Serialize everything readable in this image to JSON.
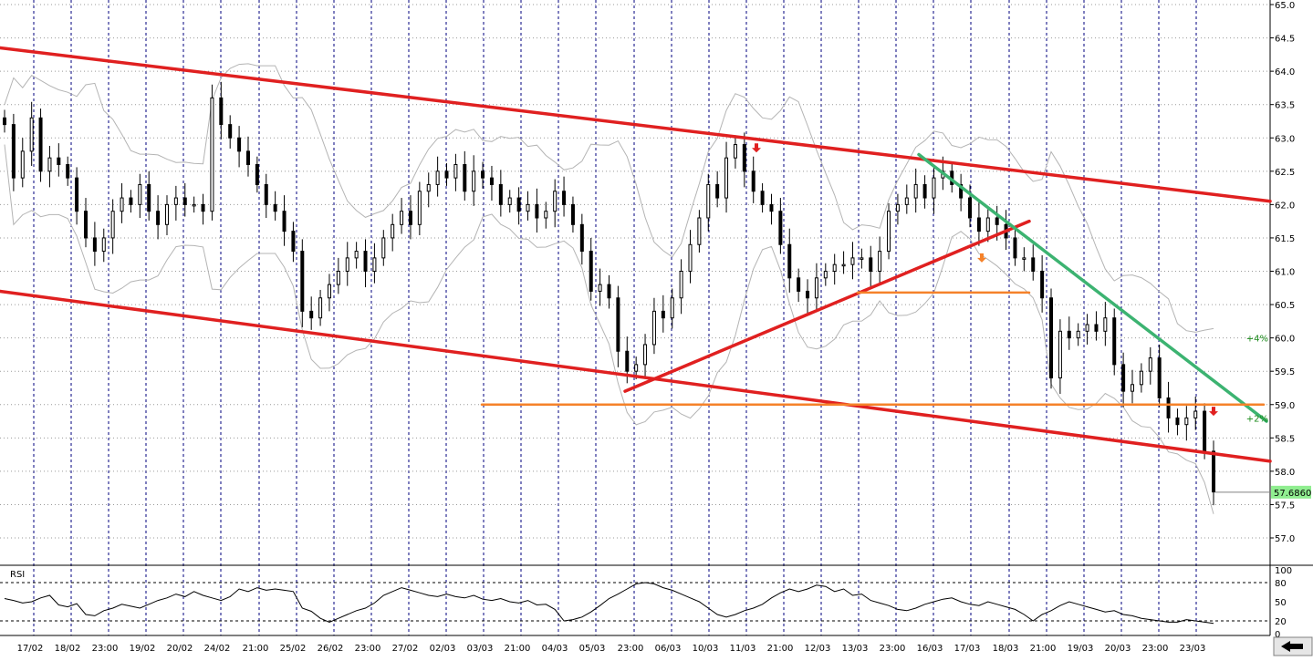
{
  "chart_data": [
    {
      "type": "candlestick",
      "title": "",
      "x_tick_labels": [
        "17/02",
        "18/02",
        "23:00",
        "19/02",
        "20/02",
        "24/02",
        "21:00",
        "25/02",
        "26/02",
        "23:00",
        "27/02",
        "02/03",
        "03/03",
        "21:00",
        "04/03",
        "05/03",
        "23:00",
        "06/03",
        "10/03",
        "11/03",
        "21:00",
        "12/03",
        "13/03",
        "23:00",
        "16/03",
        "17/03",
        "18/03",
        "21:00",
        "19/03",
        "20/03",
        "23:00",
        "23/03"
      ],
      "y_tick_labels": [
        "65.0",
        "64.5",
        "64.0",
        "63.5",
        "63.0",
        "62.5",
        "62.0",
        "61.5",
        "61.0",
        "60.5",
        "60.0",
        "59.5",
        "59.0",
        "58.5",
        "58.0",
        "57.5",
        "57.0"
      ],
      "ylim": [
        56.8,
        65.05
      ],
      "grid": true,
      "last_value_label": "57.6860",
      "last_value": 57.686,
      "close_path": [
        [
          0,
          63.2
        ],
        [
          1,
          62.4
        ],
        [
          2,
          62.8
        ],
        [
          3,
          63.3
        ],
        [
          4,
          62.5
        ],
        [
          5,
          62.7
        ],
        [
          6,
          62.6
        ],
        [
          7,
          62.4
        ],
        [
          8,
          61.9
        ],
        [
          9,
          61.5
        ],
        [
          10,
          61.3
        ],
        [
          11,
          61.5
        ],
        [
          12,
          61.9
        ],
        [
          13,
          62.1
        ],
        [
          14,
          62.0
        ],
        [
          15,
          62.3
        ],
        [
          16,
          61.9
        ],
        [
          17,
          61.7
        ],
        [
          18,
          62.0
        ],
        [
          19,
          62.1
        ],
        [
          20,
          62.0
        ],
        [
          21,
          62.0
        ],
        [
          22,
          61.9
        ],
        [
          23,
          63.6
        ],
        [
          24,
          63.2
        ],
        [
          25,
          63.0
        ],
        [
          26,
          62.8
        ],
        [
          27,
          62.6
        ],
        [
          28,
          62.3
        ],
        [
          29,
          62.0
        ],
        [
          30,
          61.9
        ],
        [
          31,
          61.6
        ],
        [
          32,
          61.3
        ],
        [
          33,
          60.4
        ],
        [
          34,
          60.3
        ],
        [
          35,
          60.6
        ],
        [
          36,
          60.8
        ],
        [
          37,
          61.0
        ],
        [
          38,
          61.2
        ],
        [
          39,
          61.3
        ],
        [
          40,
          61.0
        ],
        [
          41,
          61.2
        ],
        [
          42,
          61.5
        ],
        [
          43,
          61.7
        ],
        [
          44,
          61.9
        ],
        [
          45,
          61.7
        ],
        [
          46,
          62.2
        ],
        [
          47,
          62.3
        ],
        [
          48,
          62.5
        ],
        [
          49,
          62.4
        ],
        [
          50,
          62.6
        ],
        [
          51,
          62.2
        ],
        [
          52,
          62.5
        ],
        [
          53,
          62.4
        ],
        [
          54,
          62.3
        ],
        [
          55,
          62.0
        ],
        [
          56,
          62.1
        ],
        [
          57,
          61.9
        ],
        [
          58,
          62.0
        ],
        [
          59,
          61.8
        ],
        [
          60,
          61.9
        ],
        [
          61,
          62.2
        ],
        [
          62,
          62.0
        ],
        [
          63,
          61.7
        ],
        [
          64,
          61.3
        ],
        [
          65,
          60.7
        ],
        [
          66,
          60.8
        ],
        [
          67,
          60.6
        ],
        [
          68,
          59.8
        ],
        [
          69,
          59.5
        ],
        [
          70,
          59.6
        ],
        [
          71,
          59.9
        ],
        [
          72,
          60.4
        ],
        [
          73,
          60.3
        ],
        [
          74,
          60.6
        ],
        [
          75,
          61.0
        ],
        [
          76,
          61.4
        ],
        [
          77,
          61.8
        ],
        [
          78,
          62.3
        ],
        [
          79,
          62.1
        ],
        [
          80,
          62.7
        ],
        [
          81,
          62.9
        ],
        [
          82,
          62.5
        ],
        [
          83,
          62.2
        ],
        [
          84,
          62.0
        ],
        [
          85,
          61.9
        ],
        [
          86,
          61.4
        ],
        [
          87,
          60.9
        ],
        [
          88,
          60.7
        ],
        [
          89,
          60.6
        ],
        [
          90,
          60.9
        ],
        [
          91,
          61.0
        ],
        [
          92,
          61.1
        ],
        [
          93,
          61.1
        ],
        [
          94,
          61.2
        ],
        [
          95,
          61.2
        ],
        [
          96,
          61.0
        ],
        [
          97,
          61.3
        ],
        [
          98,
          61.9
        ],
        [
          99,
          62.0
        ],
        [
          100,
          62.1
        ],
        [
          101,
          62.3
        ],
        [
          102,
          62.1
        ],
        [
          103,
          62.4
        ],
        [
          104,
          62.5
        ],
        [
          105,
          62.3
        ],
        [
          106,
          62.1
        ],
        [
          107,
          61.8
        ],
        [
          108,
          61.6
        ],
        [
          109,
          61.8
        ],
        [
          110,
          61.7
        ],
        [
          111,
          61.5
        ],
        [
          112,
          61.2
        ],
        [
          113,
          61.2
        ],
        [
          114,
          61.0
        ],
        [
          115,
          60.6
        ],
        [
          116,
          59.4
        ],
        [
          117,
          60.1
        ],
        [
          118,
          60.0
        ],
        [
          119,
          60.1
        ],
        [
          120,
          60.2
        ],
        [
          121,
          60.1
        ],
        [
          122,
          60.3
        ],
        [
          123,
          59.6
        ],
        [
          124,
          59.2
        ],
        [
          125,
          59.3
        ],
        [
          126,
          59.5
        ],
        [
          127,
          59.7
        ],
        [
          128,
          59.1
        ],
        [
          129,
          58.8
        ],
        [
          130,
          58.7
        ],
        [
          131,
          58.8
        ],
        [
          132,
          58.9
        ],
        [
          133,
          58.3
        ],
        [
          134,
          57.69
        ]
      ],
      "rsi": {
        "label": "RSI",
        "levels": [
          100,
          80,
          50,
          20,
          0
        ],
        "values": [
          55,
          52,
          48,
          50,
          56,
          60,
          45,
          42,
          47,
          30,
          28,
          36,
          40,
          46,
          43,
          40,
          46,
          52,
          56,
          62,
          58,
          66,
          60,
          56,
          52,
          58,
          70,
          66,
          72,
          68,
          70,
          68,
          66,
          40,
          35,
          24,
          18,
          24,
          30,
          36,
          40,
          48,
          60,
          66,
          72,
          68,
          64,
          60,
          58,
          62,
          58,
          56,
          60,
          54,
          52,
          55,
          50,
          48,
          52,
          45,
          46,
          38,
          20,
          22,
          26,
          34,
          44,
          55,
          62,
          70,
          78,
          80,
          78,
          72,
          68,
          62,
          56,
          50,
          40,
          30,
          26,
          30,
          36,
          40,
          46,
          56,
          64,
          70,
          66,
          70,
          76,
          74,
          66,
          70,
          60,
          62,
          52,
          48,
          44,
          38,
          36,
          40,
          46,
          50,
          54,
          56,
          50,
          46,
          44,
          50,
          46,
          42,
          38,
          30,
          20,
          30,
          36,
          44,
          50,
          46,
          42,
          38,
          34,
          36,
          30,
          28,
          24,
          22,
          20,
          18,
          18,
          22,
          20,
          18,
          16
        ]
      },
      "annotations": [
        {
          "text": "+4%",
          "price": 60.0
        },
        {
          "text": "+2%",
          "price": 58.8
        }
      ],
      "colors": {
        "channel": "#e02020",
        "downtrend": "#3cb371",
        "support": "#f5822a",
        "bollinger": "#b4b4b4",
        "price": "#000000",
        "label_badge": "#90ee90",
        "arrow_red": "#e02020",
        "arrow_orange": "#f5822a",
        "grid": "#00007f"
      },
      "series": [
        {
          "name": "",
          "kind": "channel_upper",
          "points": [
            [
              0,
              64.35
            ],
            [
              1392,
              62.05
            ]
          ]
        },
        {
          "name": "",
          "kind": "channel_lower",
          "points": [
            [
              0,
              60.7
            ],
            [
              1392,
              58.15
            ]
          ]
        },
        {
          "name": "",
          "kind": "rising_trendline",
          "points": [
            [
              685,
              59.2
            ],
            [
              1128,
              61.75
            ]
          ]
        },
        {
          "name": "",
          "kind": "downtrend_green",
          "points": [
            [
              1007,
              62.75
            ],
            [
              1388,
              58.75
            ]
          ]
        },
        {
          "name": "",
          "kind": "support_long",
          "points": [
            [
              528,
              59.0
            ],
            [
              1385,
              59.0
            ]
          ]
        },
        {
          "name": "",
          "kind": "support_short",
          "points": [
            [
              940,
              60.68
            ],
            [
              1128,
              60.68
            ]
          ]
        }
      ],
      "markers": [
        {
          "kind": "down_arrow",
          "color_key": "arrow_red",
          "x": 829,
          "price": 62.85
        },
        {
          "kind": "down_arrow",
          "color_key": "arrow_orange",
          "x": 1076,
          "price": 61.2
        },
        {
          "kind": "down_arrow",
          "color_key": "arrow_red",
          "x": 1330,
          "price": 58.9
        }
      ]
    }
  ],
  "ui": {
    "scroll_arrow_icon": "left-arrow-icon"
  }
}
